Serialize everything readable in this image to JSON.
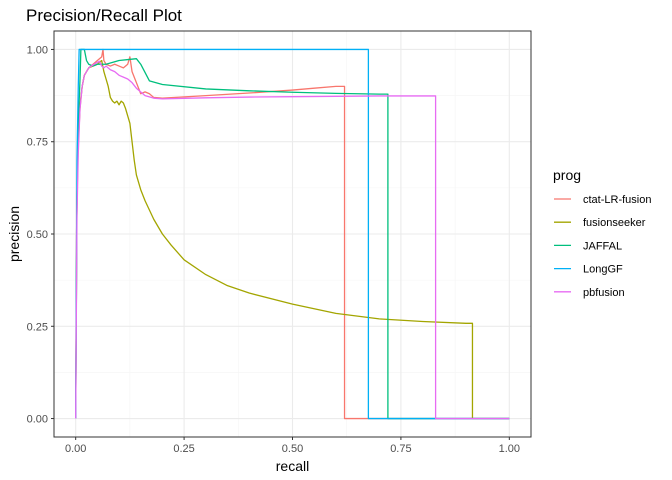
{
  "chart_data": {
    "type": "line",
    "title": "Precision/Recall Plot",
    "xlabel": "recall",
    "ylabel": "precision",
    "xlim": [
      -0.05,
      1.05
    ],
    "ylim": [
      -0.05,
      1.05
    ],
    "x_ticks": [
      0.0,
      0.25,
      0.5,
      0.75,
      1.0
    ],
    "x_tick_labels": [
      "0.00",
      "0.25",
      "0.50",
      "0.75",
      "1.00"
    ],
    "y_ticks": [
      0.0,
      0.25,
      0.5,
      0.75,
      1.0
    ],
    "y_tick_labels": [
      "0.00",
      "0.25",
      "0.50",
      "0.75",
      "1.00"
    ],
    "grid": true,
    "legend": {
      "title": "prog",
      "placement": "right"
    },
    "series": [
      {
        "name": "ctat-LR-fusion",
        "color": "#F8766D",
        "points": [
          [
            0.0,
            0.0
          ],
          [
            0.002,
            0.5
          ],
          [
            0.005,
            0.72
          ],
          [
            0.01,
            0.84
          ],
          [
            0.015,
            0.9
          ],
          [
            0.02,
            0.93
          ],
          [
            0.03,
            0.95
          ],
          [
            0.04,
            0.96
          ],
          [
            0.05,
            0.97
          ],
          [
            0.06,
            0.98
          ],
          [
            0.063,
            1.0
          ],
          [
            0.065,
            0.97
          ],
          [
            0.07,
            0.96
          ],
          [
            0.08,
            0.955
          ],
          [
            0.09,
            0.96
          ],
          [
            0.1,
            0.955
          ],
          [
            0.11,
            0.95
          ],
          [
            0.12,
            0.96
          ],
          [
            0.125,
            0.98
          ],
          [
            0.13,
            0.94
          ],
          [
            0.14,
            0.91
          ],
          [
            0.15,
            0.88
          ],
          [
            0.16,
            0.885
          ],
          [
            0.17,
            0.88
          ],
          [
            0.18,
            0.87
          ],
          [
            0.2,
            0.868
          ],
          [
            0.3,
            0.875
          ],
          [
            0.4,
            0.882
          ],
          [
            0.5,
            0.89
          ],
          [
            0.55,
            0.895
          ],
          [
            0.6,
            0.9
          ],
          [
            0.62,
            0.9
          ],
          [
            0.62,
            0.0
          ],
          [
            1.0,
            0.0
          ]
        ]
      },
      {
        "name": "fusionseeker",
        "color": "#A3A500",
        "points": [
          [
            0.0,
            0.0
          ],
          [
            0.003,
            0.6
          ],
          [
            0.006,
            0.75
          ],
          [
            0.01,
            0.85
          ],
          [
            0.015,
            0.9
          ],
          [
            0.02,
            0.93
          ],
          [
            0.03,
            0.95
          ],
          [
            0.04,
            0.955
          ],
          [
            0.05,
            0.96
          ],
          [
            0.055,
            0.965
          ],
          [
            0.06,
            0.97
          ],
          [
            0.065,
            0.94
          ],
          [
            0.07,
            0.92
          ],
          [
            0.075,
            0.9
          ],
          [
            0.08,
            0.87
          ],
          [
            0.085,
            0.86
          ],
          [
            0.09,
            0.855
          ],
          [
            0.095,
            0.86
          ],
          [
            0.1,
            0.85
          ],
          [
            0.105,
            0.86
          ],
          [
            0.11,
            0.855
          ],
          [
            0.115,
            0.84
          ],
          [
            0.12,
            0.82
          ],
          [
            0.125,
            0.8
          ],
          [
            0.13,
            0.75
          ],
          [
            0.135,
            0.7
          ],
          [
            0.14,
            0.66
          ],
          [
            0.15,
            0.62
          ],
          [
            0.16,
            0.59
          ],
          [
            0.18,
            0.54
          ],
          [
            0.2,
            0.5
          ],
          [
            0.22,
            0.47
          ],
          [
            0.25,
            0.43
          ],
          [
            0.3,
            0.39
          ],
          [
            0.35,
            0.36
          ],
          [
            0.4,
            0.34
          ],
          [
            0.5,
            0.31
          ],
          [
            0.6,
            0.285
          ],
          [
            0.7,
            0.27
          ],
          [
            0.8,
            0.263
          ],
          [
            0.9,
            0.258
          ],
          [
            0.915,
            0.258
          ],
          [
            0.915,
            0.0
          ],
          [
            1.0,
            0.0
          ]
        ]
      },
      {
        "name": "JAFFAL",
        "color": "#00BF7D",
        "points": [
          [
            0.0,
            0.0
          ],
          [
            0.003,
            0.6
          ],
          [
            0.006,
            0.8
          ],
          [
            0.01,
            0.92
          ],
          [
            0.012,
            1.0
          ],
          [
            0.02,
            1.0
          ],
          [
            0.025,
            0.97
          ],
          [
            0.03,
            0.96
          ],
          [
            0.04,
            0.955
          ],
          [
            0.05,
            0.96
          ],
          [
            0.07,
            0.96
          ],
          [
            0.1,
            0.97
          ],
          [
            0.14,
            0.975
          ],
          [
            0.15,
            0.96
          ],
          [
            0.17,
            0.915
          ],
          [
            0.2,
            0.905
          ],
          [
            0.3,
            0.893
          ],
          [
            0.4,
            0.888
          ],
          [
            0.5,
            0.884
          ],
          [
            0.6,
            0.881
          ],
          [
            0.7,
            0.879
          ],
          [
            0.72,
            0.879
          ],
          [
            0.72,
            0.0
          ],
          [
            1.0,
            0.0
          ]
        ]
      },
      {
        "name": "LongGF",
        "color": "#00B0F6",
        "points": [
          [
            0.0,
            0.0
          ],
          [
            0.003,
            0.7
          ],
          [
            0.006,
            0.9
          ],
          [
            0.008,
            1.0
          ],
          [
            0.5,
            1.0
          ],
          [
            0.675,
            1.0
          ],
          [
            0.675,
            0.0
          ],
          [
            1.0,
            0.0
          ]
        ]
      },
      {
        "name": "pbfusion",
        "color": "#E76BF3",
        "points": [
          [
            0.0,
            0.0
          ],
          [
            0.003,
            0.55
          ],
          [
            0.006,
            0.72
          ],
          [
            0.01,
            0.84
          ],
          [
            0.015,
            0.9
          ],
          [
            0.02,
            0.93
          ],
          [
            0.03,
            0.95
          ],
          [
            0.04,
            0.958
          ],
          [
            0.05,
            0.965
          ],
          [
            0.055,
            0.968
          ],
          [
            0.06,
            0.955
          ],
          [
            0.065,
            0.95
          ],
          [
            0.07,
            0.955
          ],
          [
            0.08,
            0.945
          ],
          [
            0.09,
            0.94
          ],
          [
            0.1,
            0.93
          ],
          [
            0.11,
            0.925
          ],
          [
            0.12,
            0.92
          ],
          [
            0.13,
            0.91
          ],
          [
            0.14,
            0.895
          ],
          [
            0.16,
            0.875
          ],
          [
            0.18,
            0.868
          ],
          [
            0.2,
            0.866
          ],
          [
            0.3,
            0.869
          ],
          [
            0.4,
            0.871
          ],
          [
            0.5,
            0.872
          ],
          [
            0.6,
            0.873
          ],
          [
            0.7,
            0.874
          ],
          [
            0.8,
            0.874
          ],
          [
            0.83,
            0.874
          ],
          [
            0.83,
            0.0
          ],
          [
            1.0,
            0.0
          ]
        ]
      }
    ]
  }
}
